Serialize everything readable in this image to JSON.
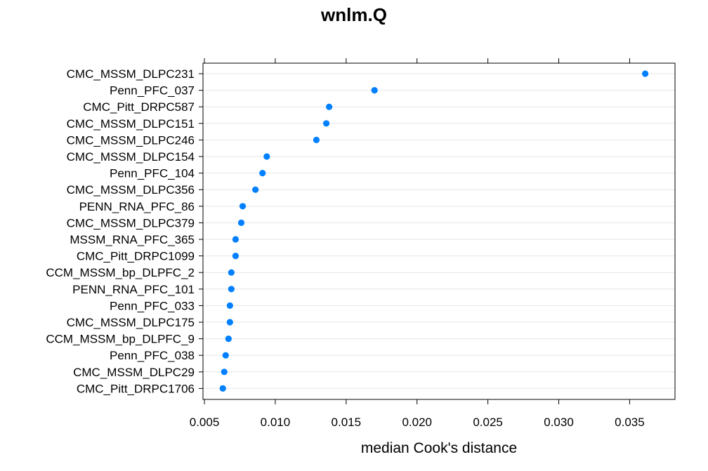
{
  "chart_data": {
    "type": "scatter",
    "title": "wnlm.Q",
    "xlabel": "median Cook's distance",
    "ylabel": "",
    "xlim": [
      0.0049,
      0.0382
    ],
    "x_ticks": [
      0.005,
      0.01,
      0.015,
      0.02,
      0.025,
      0.03,
      0.035
    ],
    "x_tick_labels": [
      "0.005",
      "0.010",
      "0.015",
      "0.020",
      "0.025",
      "0.030",
      "0.035"
    ],
    "grid": "horizontal",
    "legend": "none",
    "categories": [
      "CMC_MSSM_DLPC231",
      "Penn_PFC_037",
      "CMC_Pitt_DRPC587",
      "CMC_MSSM_DLPC151",
      "CMC_MSSM_DLPC246",
      "CMC_MSSM_DLPC154",
      "Penn_PFC_104",
      "CMC_MSSM_DLPC356",
      "PENN_RNA_PFC_86",
      "CMC_MSSM_DLPC379",
      "MSSM_RNA_PFC_365",
      "CMC_Pitt_DRPC1099",
      "CCM_MSSM_bp_DLPFC_2",
      "PENN_RNA_PFC_101",
      "Penn_PFC_033",
      "CMC_MSSM_DLPC175",
      "CCM_MSSM_bp_DLPFC_9",
      "Penn_PFC_038",
      "CMC_MSSM_DLPC29",
      "CMC_Pitt_DRPC1706"
    ],
    "values": [
      0.0361,
      0.017,
      0.0138,
      0.0136,
      0.0129,
      0.0094,
      0.0091,
      0.0086,
      0.0077,
      0.0076,
      0.0072,
      0.0072,
      0.0069,
      0.0069,
      0.0068,
      0.0068,
      0.0067,
      0.0065,
      0.0064,
      0.0063
    ],
    "colors": {
      "point": "#0080ff",
      "grid": "#e6e6e6",
      "frame": "#000000"
    }
  }
}
